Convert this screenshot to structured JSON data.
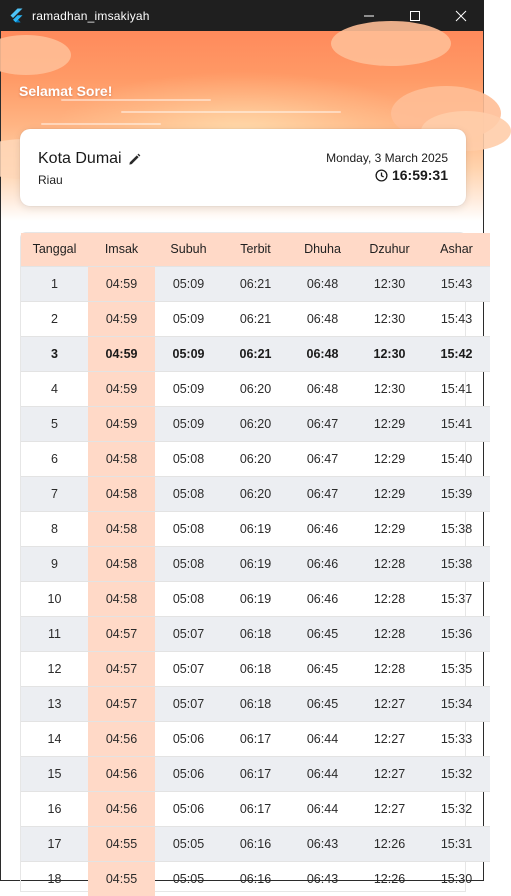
{
  "window": {
    "title": "ramadhan_imsakiyah"
  },
  "header": {
    "greeting": "Selamat Sore!"
  },
  "location": {
    "city": "Kota Dumai",
    "province": "Riau",
    "date": "Monday, 3 March 2025",
    "time": "16:59:31"
  },
  "table": {
    "columns": [
      "Tanggal",
      "Imsak",
      "Subuh",
      "Terbit",
      "Dhuha",
      "Dzuhur",
      "Ashar"
    ],
    "rows": [
      {
        "tanggal": "1",
        "imsak": "04:59",
        "subuh": "05:09",
        "terbit": "06:21",
        "dhuha": "06:48",
        "dzuhur": "12:30",
        "ashar": "15:43"
      },
      {
        "tanggal": "2",
        "imsak": "04:59",
        "subuh": "05:09",
        "terbit": "06:21",
        "dhuha": "06:48",
        "dzuhur": "12:30",
        "ashar": "15:43"
      },
      {
        "tanggal": "3",
        "imsak": "04:59",
        "subuh": "05:09",
        "terbit": "06:21",
        "dhuha": "06:48",
        "dzuhur": "12:30",
        "ashar": "15:42"
      },
      {
        "tanggal": "4",
        "imsak": "04:59",
        "subuh": "05:09",
        "terbit": "06:20",
        "dhuha": "06:48",
        "dzuhur": "12:30",
        "ashar": "15:41"
      },
      {
        "tanggal": "5",
        "imsak": "04:59",
        "subuh": "05:09",
        "terbit": "06:20",
        "dhuha": "06:47",
        "dzuhur": "12:29",
        "ashar": "15:41"
      },
      {
        "tanggal": "6",
        "imsak": "04:58",
        "subuh": "05:08",
        "terbit": "06:20",
        "dhuha": "06:47",
        "dzuhur": "12:29",
        "ashar": "15:40"
      },
      {
        "tanggal": "7",
        "imsak": "04:58",
        "subuh": "05:08",
        "terbit": "06:20",
        "dhuha": "06:47",
        "dzuhur": "12:29",
        "ashar": "15:39"
      },
      {
        "tanggal": "8",
        "imsak": "04:58",
        "subuh": "05:08",
        "terbit": "06:19",
        "dhuha": "06:46",
        "dzuhur": "12:29",
        "ashar": "15:38"
      },
      {
        "tanggal": "9",
        "imsak": "04:58",
        "subuh": "05:08",
        "terbit": "06:19",
        "dhuha": "06:46",
        "dzuhur": "12:28",
        "ashar": "15:38"
      },
      {
        "tanggal": "10",
        "imsak": "04:58",
        "subuh": "05:08",
        "terbit": "06:19",
        "dhuha": "06:46",
        "dzuhur": "12:28",
        "ashar": "15:37"
      },
      {
        "tanggal": "11",
        "imsak": "04:57",
        "subuh": "05:07",
        "terbit": "06:18",
        "dhuha": "06:45",
        "dzuhur": "12:28",
        "ashar": "15:36"
      },
      {
        "tanggal": "12",
        "imsak": "04:57",
        "subuh": "05:07",
        "terbit": "06:18",
        "dhuha": "06:45",
        "dzuhur": "12:28",
        "ashar": "15:35"
      },
      {
        "tanggal": "13",
        "imsak": "04:57",
        "subuh": "05:07",
        "terbit": "06:18",
        "dhuha": "06:45",
        "dzuhur": "12:27",
        "ashar": "15:34"
      },
      {
        "tanggal": "14",
        "imsak": "04:56",
        "subuh": "05:06",
        "terbit": "06:17",
        "dhuha": "06:44",
        "dzuhur": "12:27",
        "ashar": "15:33"
      },
      {
        "tanggal": "15",
        "imsak": "04:56",
        "subuh": "05:06",
        "terbit": "06:17",
        "dhuha": "06:44",
        "dzuhur": "12:27",
        "ashar": "15:32"
      },
      {
        "tanggal": "16",
        "imsak": "04:56",
        "subuh": "05:06",
        "terbit": "06:17",
        "dhuha": "06:44",
        "dzuhur": "12:27",
        "ashar": "15:32"
      },
      {
        "tanggal": "17",
        "imsak": "04:55",
        "subuh": "05:05",
        "terbit": "06:16",
        "dhuha": "06:43",
        "dzuhur": "12:26",
        "ashar": "15:31"
      },
      {
        "tanggal": "18",
        "imsak": "04:55",
        "subuh": "05:05",
        "terbit": "06:16",
        "dhuha": "06:43",
        "dzuhur": "12:26",
        "ashar": "15:30"
      }
    ],
    "today_index": 2
  },
  "colors": {
    "header_start": "#ff8a5c",
    "imsak_highlight": "#ffd9c7",
    "row_shade": "#eceef2"
  }
}
